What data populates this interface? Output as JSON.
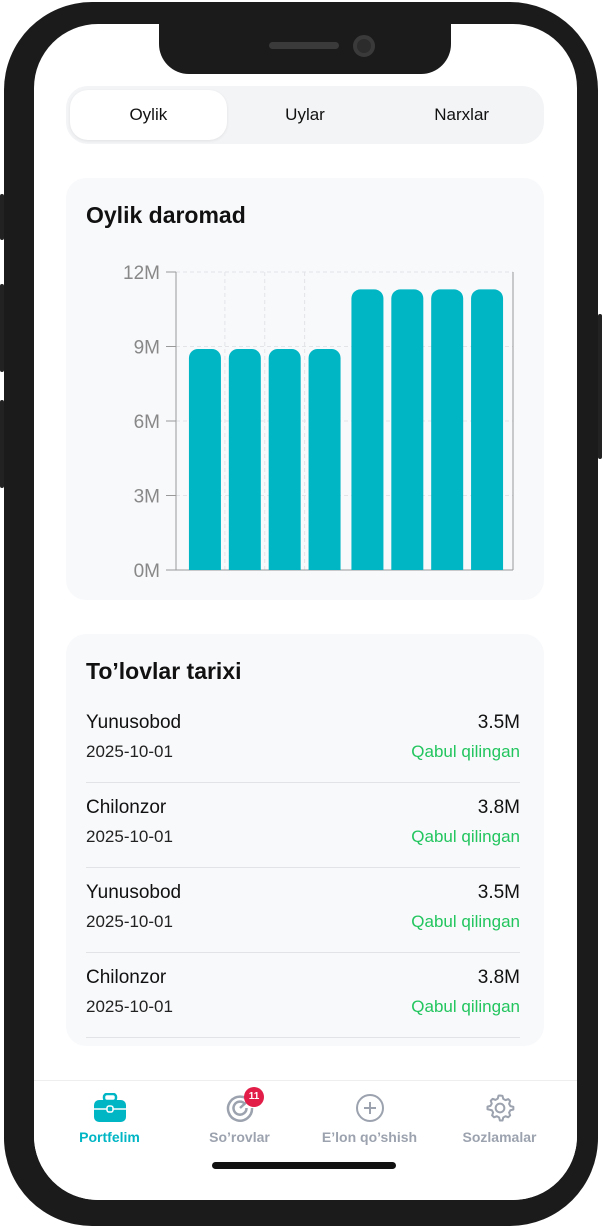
{
  "tabs": [
    {
      "label": "Oylik",
      "active": true
    },
    {
      "label": "Uylar"
    },
    {
      "label": "Narxlar"
    }
  ],
  "income_card": {
    "title": "Oylik daromad"
  },
  "chart_data": {
    "type": "bar",
    "title": "Oylik daromad",
    "categories": [
      "",
      "",
      "",
      "",
      "",
      "",
      "",
      ""
    ],
    "values": [
      8.9,
      8.9,
      8.9,
      8.9,
      11.3,
      11.3,
      11.3,
      11.3
    ],
    "unit": "M",
    "ylim": [
      0,
      12
    ],
    "yticks": [
      "0M",
      "3M",
      "6M",
      "9M",
      "12M"
    ],
    "grid": true,
    "color": "#00b5c4"
  },
  "payments": {
    "title": "To’lovlar tarixi",
    "items": [
      {
        "name": "Yunusobod",
        "date": "2025-10-01",
        "amount": "3.5M",
        "status": "Qabul qilingan"
      },
      {
        "name": "Chilonzor",
        "date": "2025-10-01",
        "amount": "3.8M",
        "status": "Qabul qilingan"
      },
      {
        "name": "Yunusobod",
        "date": "2025-10-01",
        "amount": "3.5M",
        "status": "Qabul qilingan"
      },
      {
        "name": "Chilonzor",
        "date": "2025-10-01",
        "amount": "3.8M",
        "status": "Qabul qilingan"
      }
    ]
  },
  "nav": {
    "items": [
      {
        "label": "Portfelim",
        "icon": "briefcase-icon",
        "active": true
      },
      {
        "label": "So’rovlar",
        "icon": "target-icon",
        "badge": "11"
      },
      {
        "label": "E’lon qo’shish",
        "icon": "plus-circle-icon"
      },
      {
        "label": "Sozlamalar",
        "icon": "gear-icon"
      }
    ]
  },
  "colors": {
    "accent": "#00b5c4",
    "success": "#22c55e",
    "badge": "#e11d48"
  }
}
